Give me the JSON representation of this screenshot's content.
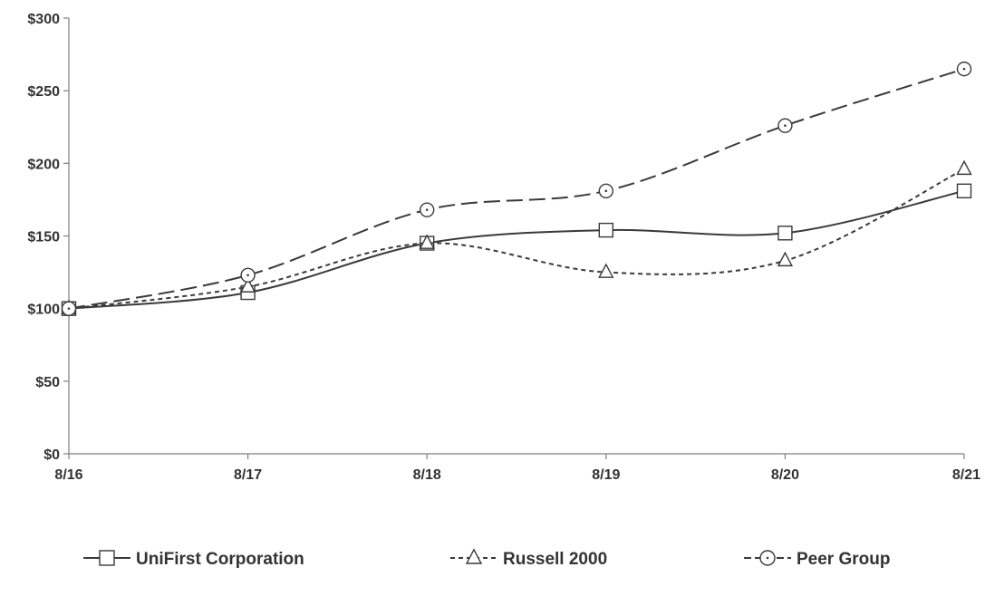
{
  "chart_data": {
    "type": "line",
    "categories": [
      "8/16",
      "8/17",
      "8/18",
      "8/19",
      "8/20",
      "8/21"
    ],
    "y_ticks": [
      "$0",
      "$50",
      "$100",
      "$150",
      "$200",
      "$250",
      "$300"
    ],
    "ylim": [
      0,
      300
    ],
    "grid": false,
    "legend_position": "bottom",
    "series": [
      {
        "name": "UniFirst Corporation",
        "marker": "square",
        "dash": "solid",
        "color": "#3a3a3a",
        "values": [
          100,
          111,
          145,
          154,
          152,
          181
        ]
      },
      {
        "name": "Russell 2000",
        "marker": "triangle",
        "dash": "short-dash",
        "color": "#3a3a3a",
        "values": [
          100,
          115,
          145,
          125,
          133,
          196
        ]
      },
      {
        "name": "Peer Group",
        "marker": "circle",
        "dash": "long-dash",
        "color": "#3a3a3a",
        "values": [
          100,
          123,
          168,
          181,
          226,
          265
        ]
      }
    ]
  }
}
